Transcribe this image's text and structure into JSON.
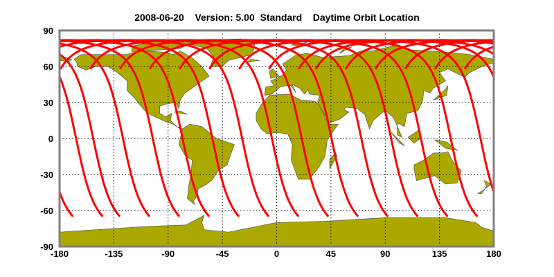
{
  "title": "2008-06-20    Version: 5.00  Standard    Daytime Orbit Location",
  "chart_data": {
    "type": "map",
    "projection": "equirectangular",
    "xlim": [
      -180,
      180
    ],
    "ylim": [
      -90,
      90
    ],
    "x_ticks": [
      "-180",
      "-135",
      "-90",
      "-45",
      "0",
      "45",
      "90",
      "135",
      "180"
    ],
    "y_ticks": [
      "90",
      "60",
      "30",
      "0",
      "-30",
      "-60",
      "-90"
    ],
    "grid": true,
    "orbit_track_south_end_lat": -65,
    "orbit_track_south_end_lons": [
      -130,
      -105.3,
      -80.6,
      -55.9,
      -31.2,
      -6.5,
      18.2,
      42.9,
      67.6,
      92.3,
      117,
      141.7,
      166.4,
      -168.9,
      -144.2
    ],
    "colors": {
      "land": "#aba900",
      "coast": "#555555",
      "orbit": "#ff0000",
      "frame": "#808080"
    }
  }
}
